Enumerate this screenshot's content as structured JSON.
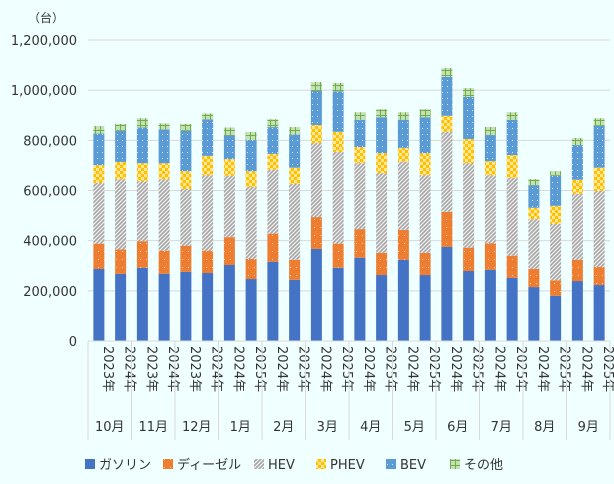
{
  "chart_data": {
    "type": "bar",
    "stacked": true,
    "unit_label": "（台）",
    "ylim": [
      0,
      1200000
    ],
    "yticks": [
      "0",
      "200,000",
      "400,000",
      "600,000",
      "800,000",
      "1,000,000",
      "1,200,000"
    ],
    "grid": true,
    "legend_position": "bottom",
    "groups": [
      {
        "month": "10月",
        "years": [
          "2023年",
          "2024年"
        ]
      },
      {
        "month": "11月",
        "years": [
          "2023年",
          "2024年"
        ]
      },
      {
        "month": "12月",
        "years": [
          "2023年",
          "2024年"
        ]
      },
      {
        "month": "1月",
        "years": [
          "2024年",
          "2025年"
        ]
      },
      {
        "month": "2月",
        "years": [
          "2024年",
          "2025年"
        ]
      },
      {
        "month": "3月",
        "years": [
          "2024年",
          "2025年"
        ]
      },
      {
        "month": "4月",
        "years": [
          "2024年",
          "2025年"
        ]
      },
      {
        "month": "5月",
        "years": [
          "2024年",
          "2025年"
        ]
      },
      {
        "month": "6月",
        "years": [
          "2024年",
          "2025年"
        ]
      },
      {
        "month": "7月",
        "years": [
          "2024年",
          "2025年"
        ]
      },
      {
        "month": "8月",
        "years": [
          "2024年",
          "2025年"
        ]
      },
      {
        "month": "9月",
        "years": [
          "2024年",
          "2025年"
        ]
      }
    ],
    "series": [
      {
        "name": "ガソリン",
        "color": "#4472c4",
        "values": [
          287000,
          268000,
          292000,
          268000,
          276000,
          271000,
          303000,
          247000,
          316000,
          244000,
          367000,
          292000,
          332000,
          263000,
          324000,
          263000,
          375000,
          279000,
          284000,
          252000,
          215000,
          180000,
          239000,
          223000
        ]
      },
      {
        "name": "ディーゼル",
        "color": "#ed7d31",
        "values": [
          101000,
          97000,
          106000,
          92000,
          104000,
          89000,
          111000,
          80000,
          112000,
          80000,
          127000,
          96000,
          114000,
          88000,
          119000,
          88000,
          140000,
          93000,
          106000,
          88000,
          72000,
          62000,
          85000,
          72000
        ]
      },
      {
        "name": "HEV",
        "color": "#a5a5a5",
        "values": [
          242000,
          280000,
          239000,
          285000,
          226000,
          301000,
          245000,
          287000,
          255000,
          303000,
          295000,
          366000,
          263000,
          318000,
          272000,
          310000,
          319000,
          337000,
          271000,
          311000,
          199000,
          225000,
          263000,
          303000
        ]
      },
      {
        "name": "PHEV",
        "color": "#ffc000",
        "values": [
          71000,
          69000,
          72000,
          64000,
          71000,
          77000,
          66000,
          63000,
          63000,
          64000,
          72000,
          80000,
          64000,
          80000,
          55000,
          88000,
          64000,
          96000,
          56000,
          90000,
          45000,
          72000,
          56000,
          93000
        ]
      },
      {
        "name": "BEV",
        "color": "#5b9bd5",
        "values": [
          126000,
          124000,
          142000,
          134000,
          161000,
          145000,
          94000,
          124000,
          107000,
          132000,
          136000,
          161000,
          109000,
          143000,
          112000,
          143000,
          155000,
          168000,
          104000,
          141000,
          90000,
          120000,
          138000,
          167000
        ]
      },
      {
        "name": "その他",
        "color": "#70ad47",
        "values": [
          30000,
          27000,
          37000,
          24000,
          27000,
          24000,
          32000,
          32000,
          31000,
          30000,
          35000,
          34000,
          30000,
          32000,
          30000,
          32000,
          35000,
          35000,
          32000,
          30000,
          24000,
          18000,
          28000,
          30000
        ]
      }
    ]
  }
}
